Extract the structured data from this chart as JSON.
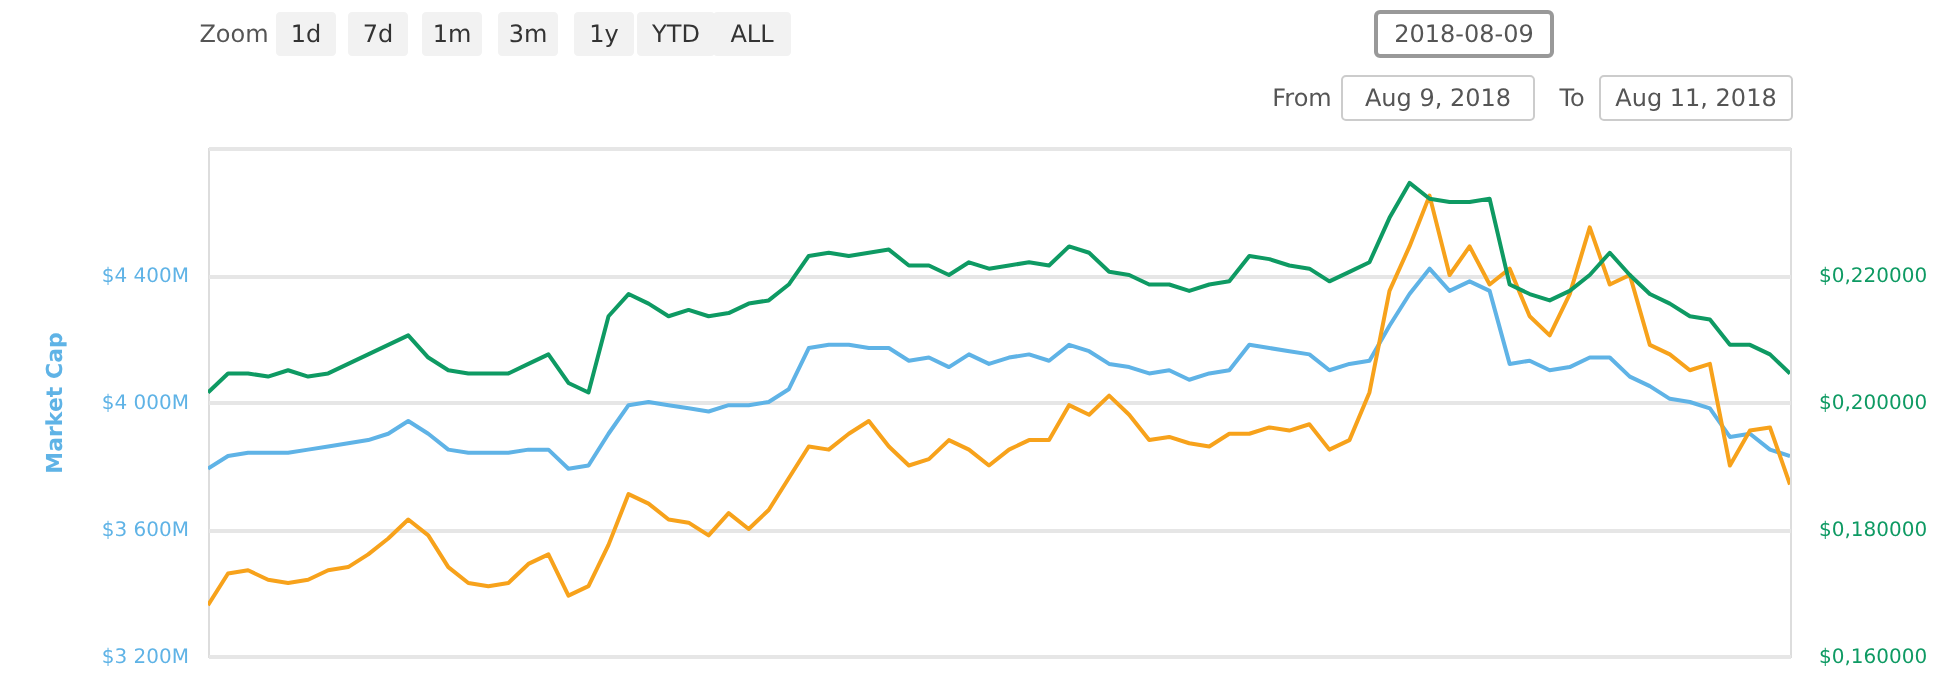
{
  "chart_data": {
    "type": "line",
    "ylabel": "Market Cap",
    "annotations": [
      "Zoom",
      "1d",
      "7d",
      "1m",
      "3m",
      "1y",
      "YTD",
      "ALL",
      "2018-08-09",
      "From",
      "Aug 9, 2018",
      "To",
      "Aug 11, 2018"
    ],
    "categories": [
      null,
      null,
      null,
      null,
      null,
      null,
      null,
      null,
      null,
      null,
      null,
      null,
      null,
      null,
      null,
      null,
      null,
      null,
      null,
      null,
      null,
      null,
      null,
      null,
      null,
      null,
      null,
      null,
      null,
      null,
      null,
      null,
      null,
      null,
      null,
      null,
      null,
      null,
      null,
      null,
      null,
      null,
      null,
      null,
      null,
      null,
      null,
      null,
      null,
      null,
      null,
      null,
      null,
      null,
      null,
      null,
      null,
      null,
      null,
      null,
      null,
      null,
      null,
      null,
      null,
      null,
      null,
      null,
      null,
      null,
      null,
      null,
      null,
      null,
      null,
      null,
      null,
      null,
      null,
      null
    ],
    "series": [
      {
        "color": "#5fb3e6",
        "values": [
          3790,
          3830,
          3840,
          3840,
          3840,
          3850,
          3860,
          3870,
          3880,
          3900,
          3940,
          3900,
          3850,
          3840,
          3840,
          3840,
          3850,
          3850,
          3790,
          3800,
          3900,
          3990,
          4000,
          3990,
          3980,
          3970,
          3990,
          3990,
          4000,
          4040,
          4170,
          4180,
          4180,
          4170,
          4170,
          4130,
          4140,
          4110,
          4150,
          4120,
          4140,
          4150,
          4130,
          4180,
          4160,
          4120,
          4110,
          4090,
          4100,
          4070,
          4090,
          4100,
          4180,
          4170,
          4160,
          4150,
          4100,
          4120,
          4130,
          4240,
          4340,
          4420,
          4350,
          4380,
          4350,
          4120,
          4130,
          4100,
          4110,
          4140,
          4140,
          4080,
          4050,
          4010,
          4000,
          3980,
          3890,
          3900,
          3850,
          3830
        ]
      },
      {
        "color": "#f7a21b",
        "values": [
          3360,
          3460,
          3470,
          3440,
          3430,
          3440,
          3470,
          3480,
          3520,
          3570,
          3630,
          3580,
          3480,
          3430,
          3420,
          3430,
          3490,
          3520,
          3390,
          3420,
          3550,
          3710,
          3680,
          3630,
          3620,
          3580,
          3650,
          3600,
          3660,
          3760,
          3860,
          3850,
          3900,
          3940,
          3860,
          3800,
          3820,
          3880,
          3850,
          3800,
          3850,
          3880,
          3880,
          3990,
          3960,
          4020,
          3960,
          3880,
          3890,
          3870,
          3860,
          3900,
          3900,
          3920,
          3910,
          3930,
          3850,
          3880,
          4030,
          4350,
          4490,
          4650,
          4400,
          4490,
          4370,
          4420,
          4270,
          4210,
          4340,
          4550,
          4370,
          4400,
          4180,
          4150,
          4100,
          4120,
          3800,
          3910,
          3920,
          3740
        ]
      },
      {
        "color": "#0e9a63",
        "axis": "y2",
        "values": [
          0.2015,
          0.2045,
          0.2045,
          0.204,
          0.205,
          0.204,
          0.2045,
          0.206,
          0.2075,
          0.209,
          0.2105,
          0.207,
          0.205,
          0.2045,
          0.2045,
          0.2045,
          0.206,
          0.2075,
          0.203,
          0.2015,
          0.2135,
          0.217,
          0.2155,
          0.2135,
          0.2145,
          0.2135,
          0.214,
          0.2155,
          0.216,
          0.2185,
          0.223,
          0.2235,
          0.223,
          0.2235,
          0.224,
          0.2215,
          0.2215,
          0.22,
          0.222,
          0.221,
          0.2215,
          0.222,
          0.2215,
          0.2245,
          0.2235,
          0.2205,
          0.22,
          0.2185,
          0.2185,
          0.2175,
          0.2185,
          0.219,
          0.223,
          0.2225,
          0.2215,
          0.221,
          0.219,
          0.2205,
          0.222,
          0.229,
          0.2345,
          0.232,
          0.2315,
          0.2315,
          0.232,
          0.2185,
          0.217,
          0.216,
          0.2175,
          0.22,
          0.2235,
          0.22,
          0.217,
          0.2155,
          0.2135,
          0.213,
          0.209,
          0.209,
          0.2075,
          0.2045
        ]
      }
    ],
    "ylim": [
      3200,
      4800
    ],
    "yticks": [
      {
        "value": 3200,
        "label": "$3 200M"
      },
      {
        "value": 3600,
        "label": "$3 600M"
      },
      {
        "value": 4000,
        "label": "$4 000M"
      },
      {
        "value": 4400,
        "label": "$4 400M"
      },
      {
        "value": 4800,
        "label": null
      }
    ],
    "y2lim": [
      0.16,
      0.24
    ],
    "y2ticks": [
      {
        "value": 0.16,
        "label": "$0,160000"
      },
      {
        "value": 0.18,
        "label": "$0,180000"
      },
      {
        "value": 0.2,
        "label": "$0,200000"
      },
      {
        "value": 0.22,
        "label": "$0,220000"
      },
      {
        "value": 0.24,
        "label": null
      }
    ],
    "grid": "y",
    "tick_labels": "y",
    "line_style": "solid",
    "marker": "none"
  }
}
